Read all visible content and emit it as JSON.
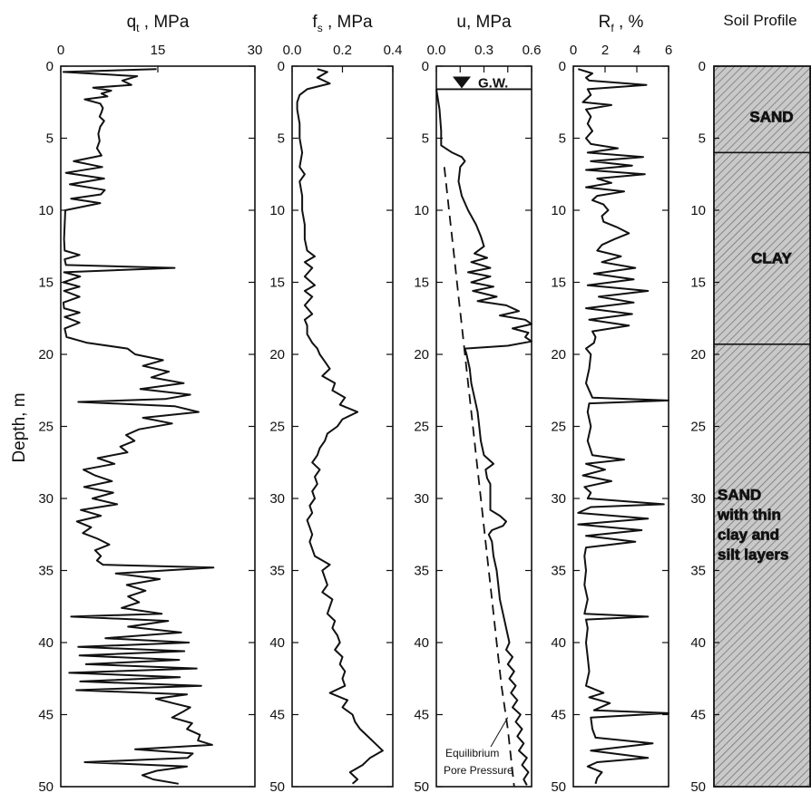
{
  "figure": {
    "y_axis_label": "Depth, m"
  },
  "chart_data": [
    {
      "type": "line",
      "title": "q_t , MPa",
      "title_main": "q",
      "title_sub": "t",
      "title_rest": " , MPa",
      "xlabel": "q_t , MPa",
      "ylabel": "Depth, m",
      "xlim": [
        0,
        30
      ],
      "ylim": [
        50,
        0
      ],
      "x_ticks": [
        0,
        15,
        30
      ],
      "y_ticks": [
        0,
        5,
        10,
        15,
        20,
        25,
        30,
        35,
        40,
        45,
        50
      ],
      "series": [
        {
          "y": [
            0.2,
            0.4,
            0.7,
            1.0,
            1.3,
            1.5,
            1.7,
            1.9,
            2.1,
            2.3,
            2.6,
            2.9,
            3.2,
            3.5,
            3.8,
            4.2,
            4.7,
            5.2,
            5.7,
            6.2,
            6.6,
            7.0,
            7.4,
            7.8,
            8.2,
            8.6,
            8.9,
            9.2,
            9.5,
            10.0,
            11.0,
            12.0,
            12.8,
            13.1,
            13.4,
            13.8,
            14.0,
            14.3,
            14.6,
            15.0,
            15.3,
            15.6,
            16.0,
            16.4,
            16.8,
            17.1,
            17.4,
            17.8,
            18.2,
            18.8,
            19.2,
            19.6,
            20.0,
            20.4,
            20.8,
            21.2,
            21.6,
            22.0,
            22.4,
            22.8,
            23.1,
            23.3,
            23.6,
            24.0,
            24.4,
            24.8,
            25.2,
            25.6,
            26.0,
            26.4,
            26.8,
            27.2,
            27.6,
            28.0,
            28.4,
            28.8,
            29.2,
            29.6,
            30.0,
            30.4,
            30.8,
            31.2,
            31.6,
            32.0,
            32.4,
            32.8,
            33.2,
            33.6,
            34.0,
            34.3,
            34.6,
            34.8,
            35.2,
            35.6,
            36.0,
            36.4,
            36.8,
            37.2,
            37.6,
            38.0,
            38.2,
            38.5,
            38.9,
            39.3,
            39.7,
            40.0,
            40.3,
            40.6,
            40.9,
            41.2,
            41.5,
            41.8,
            42.1,
            42.4,
            42.7,
            43.0,
            43.3,
            43.6,
            43.9,
            44.2,
            44.5,
            44.8,
            45.2,
            45.6,
            46.0,
            46.4,
            46.8,
            47.1,
            47.4,
            47.7,
            48.0,
            48.3,
            48.6,
            48.9,
            49.2,
            49.5,
            49.8
          ],
          "x": [
            14.8,
            0.4,
            11.8,
            9.5,
            10.9,
            5.0,
            7.8,
            6.3,
            7.2,
            3.7,
            6.1,
            6.5,
            6.3,
            6.0,
            6.7,
            6.1,
            5.8,
            6.0,
            5.6,
            6.3,
            2.0,
            6.4,
            0.8,
            6.7,
            1.4,
            6.8,
            6.2,
            1.6,
            6.1,
            0.7,
            0.6,
            0.5,
            0.6,
            2.9,
            0.6,
            0.8,
            17.6,
            0.5,
            3.0,
            0.4,
            2.9,
            0.5,
            2.9,
            0.4,
            0.5,
            2.9,
            0.6,
            2.9,
            0.6,
            0.9,
            4.1,
            10.3,
            11.5,
            15.8,
            12.7,
            16.7,
            14.0,
            19.0,
            12.3,
            20.0,
            16.1,
            2.7,
            17.6,
            21.3,
            12.7,
            17.2,
            12.1,
            10.1,
            11.4,
            9.2,
            10.3,
            5.7,
            8.3,
            3.5,
            5.3,
            7.9,
            3.6,
            8.1,
            4.9,
            8.7,
            3.1,
            6.2,
            2.5,
            4.7,
            3.4,
            5.7,
            7.5,
            5.3,
            6.2,
            5.6,
            6.5,
            23.6,
            8.5,
            15.3,
            10.2,
            13.1,
            10.4,
            12.1,
            9.4,
            15.6,
            1.6,
            16.6,
            10.4,
            18.6,
            6.9,
            19.8,
            2.7,
            19.1,
            2.9,
            18.3,
            3.9,
            21.0,
            1.3,
            18.4,
            3.0,
            21.7,
            2.4,
            19.5,
            14.7,
            17.3,
            20.0,
            18.9,
            17.2,
            20.3,
            19.5,
            21.5,
            21.2,
            23.4,
            11.5,
            20.4,
            19.6,
            3.7,
            19.5,
            14.8,
            12.6,
            14.3,
            18.2
          ]
        }
      ]
    },
    {
      "type": "line",
      "title": "f_s , MPa",
      "title_main": "f",
      "title_sub": "s",
      "title_rest": " , MPa",
      "xlabel": "f_s , MPa",
      "xlim": [
        0,
        0.4
      ],
      "ylim": [
        50,
        0
      ],
      "x_ticks": [
        0,
        0.2,
        0.4
      ],
      "x_tick_labels": [
        "0.0",
        "0.2",
        "0.4"
      ],
      "y_ticks": [
        0,
        5,
        10,
        15,
        20,
        25,
        30,
        35,
        40,
        45,
        50
      ],
      "series": [
        {
          "y": [
            0.2,
            0.4,
            0.8,
            1.2,
            1.6,
            2.0,
            2.5,
            3.0,
            4.0,
            5.0,
            6.0,
            7.0,
            7.5,
            8.0,
            9.0,
            10.0,
            11.0,
            12.0,
            12.8,
            13.2,
            13.6,
            14.0,
            14.6,
            15.2,
            15.6,
            16.0,
            16.6,
            17.2,
            17.6,
            18.0,
            18.6,
            19.2,
            19.6,
            20.0,
            20.5,
            21.0,
            21.5,
            22.0,
            22.5,
            23.0,
            23.5,
            24.0,
            24.5,
            25.0,
            25.5,
            26.0,
            26.5,
            27.0,
            27.5,
            28.0,
            28.5,
            29.0,
            29.5,
            30.0,
            30.5,
            31.0,
            31.5,
            32.0,
            32.5,
            33.0,
            33.5,
            34.0,
            34.6,
            35.0,
            35.5,
            36.0,
            36.5,
            37.0,
            37.5,
            38.0,
            38.5,
            39.0,
            39.5,
            40.0,
            40.5,
            41.0,
            41.5,
            42.0,
            42.5,
            43.0,
            43.5,
            44.0,
            44.5,
            45.0,
            45.5,
            46.0,
            46.5,
            47.0,
            47.5,
            48.0,
            48.5,
            49.0,
            49.5,
            49.8
          ],
          "x": [
            0.1,
            0.14,
            0.1,
            0.15,
            0.06,
            0.03,
            0.02,
            0.02,
            0.03,
            0.03,
            0.04,
            0.03,
            0.05,
            0.03,
            0.04,
            0.04,
            0.05,
            0.05,
            0.06,
            0.09,
            0.05,
            0.08,
            0.05,
            0.09,
            0.05,
            0.08,
            0.05,
            0.08,
            0.05,
            0.06,
            0.06,
            0.08,
            0.1,
            0.11,
            0.13,
            0.15,
            0.12,
            0.17,
            0.16,
            0.21,
            0.19,
            0.26,
            0.2,
            0.18,
            0.14,
            0.13,
            0.11,
            0.1,
            0.08,
            0.11,
            0.09,
            0.1,
            0.08,
            0.09,
            0.07,
            0.08,
            0.06,
            0.07,
            0.08,
            0.07,
            0.08,
            0.09,
            0.15,
            0.12,
            0.13,
            0.14,
            0.12,
            0.16,
            0.15,
            0.14,
            0.17,
            0.16,
            0.18,
            0.19,
            0.17,
            0.2,
            0.19,
            0.21,
            0.2,
            0.21,
            0.15,
            0.22,
            0.2,
            0.24,
            0.25,
            0.27,
            0.3,
            0.33,
            0.36,
            0.31,
            0.28,
            0.23,
            0.26,
            0.24
          ]
        }
      ]
    },
    {
      "type": "line",
      "title": "u, MPa",
      "xlabel": "u, MPa",
      "xlim": [
        0,
        0.6
      ],
      "ylim": [
        50,
        0
      ],
      "x_ticks": [
        0,
        0.15,
        0.3,
        0.45,
        0.6
      ],
      "x_tick_labels": [
        "0.0",
        "",
        "0.3",
        "",
        "0.6"
      ],
      "y_ticks": [
        0,
        5,
        10,
        15,
        20,
        25,
        30,
        35,
        40,
        45,
        50
      ],
      "annotations": {
        "groundwater": "G.W.",
        "groundwater_depth": 1.6,
        "equilibrium_line1": "Equilibrium",
        "equilibrium_line2": "Pore Pressure"
      },
      "series": [
        {
          "name": "measured",
          "y": [
            1.6,
            3.0,
            4.5,
            5.5,
            6.0,
            6.3,
            6.6,
            7.0,
            8.0,
            9.0,
            10.0,
            11.0,
            11.8,
            12.5,
            13.0,
            13.3,
            13.6,
            14.0,
            14.3,
            14.6,
            15.0,
            15.3,
            15.6,
            16.0,
            16.3,
            16.6,
            17.0,
            17.3,
            17.6,
            17.9,
            18.2,
            18.5,
            18.8,
            19.1,
            19.4,
            19.6,
            20.0,
            21.0,
            22.0,
            23.0,
            24.0,
            25.0,
            26.0,
            27.0,
            27.6,
            28.0,
            28.6,
            29.0,
            30.0,
            30.8,
            31.2,
            31.6,
            31.9,
            32.2,
            32.5,
            33.0,
            34.0,
            35.0,
            36.0,
            37.0,
            38.0,
            39.0,
            40.0,
            40.5,
            41.0,
            41.5,
            42.0,
            42.5,
            43.0,
            43.5,
            44.0,
            44.5,
            45.0,
            45.5,
            46.0,
            46.5,
            47.0,
            47.5,
            48.0,
            48.5,
            49.0,
            49.5,
            49.9
          ],
          "x": [
            0.0,
            0.02,
            0.03,
            0.03,
            0.1,
            0.16,
            0.18,
            0.15,
            0.14,
            0.16,
            0.2,
            0.25,
            0.28,
            0.3,
            0.24,
            0.32,
            0.22,
            0.34,
            0.2,
            0.34,
            0.22,
            0.36,
            0.23,
            0.38,
            0.26,
            0.44,
            0.52,
            0.4,
            0.56,
            0.6,
            0.48,
            0.58,
            0.56,
            0.6,
            0.45,
            0.18,
            0.19,
            0.21,
            0.22,
            0.24,
            0.26,
            0.27,
            0.28,
            0.3,
            0.36,
            0.31,
            0.32,
            0.34,
            0.34,
            0.34,
            0.4,
            0.44,
            0.42,
            0.35,
            0.33,
            0.35,
            0.36,
            0.38,
            0.39,
            0.4,
            0.42,
            0.44,
            0.46,
            0.44,
            0.48,
            0.45,
            0.49,
            0.46,
            0.5,
            0.47,
            0.51,
            0.48,
            0.53,
            0.5,
            0.54,
            0.51,
            0.55,
            0.52,
            0.57,
            0.54,
            0.58,
            0.55,
            0.57
          ]
        },
        {
          "name": "equilibrium",
          "style": "dashed",
          "y": [
            7.0,
            10.0,
            13.0,
            16.0,
            19.0,
            22.0,
            25.0,
            28.0,
            31.0,
            34.0,
            37.0,
            40.0,
            43.0,
            46.0,
            49.0,
            50.0
          ],
          "x": [
            0.05,
            0.08,
            0.11,
            0.14,
            0.17,
            0.2,
            0.23,
            0.26,
            0.29,
            0.32,
            0.35,
            0.38,
            0.41,
            0.45,
            0.48,
            0.49
          ]
        }
      ]
    },
    {
      "type": "line",
      "title": "R_f , %",
      "title_main": "R",
      "title_sub": "f",
      "title_rest": " , %",
      "xlabel": "R_f , %",
      "xlim": [
        0,
        6
      ],
      "ylim": [
        50,
        0
      ],
      "x_ticks": [
        0,
        2,
        4,
        6
      ],
      "y_ticks": [
        0,
        5,
        10,
        15,
        20,
        25,
        30,
        35,
        40,
        45,
        50
      ],
      "series": [
        {
          "y": [
            0.2,
            0.5,
            0.8,
            1.0,
            1.3,
            1.6,
            2.0,
            2.5,
            2.7,
            3.0,
            3.5,
            4.0,
            4.5,
            5.0,
            5.4,
            5.7,
            6.0,
            6.3,
            6.6,
            6.9,
            7.2,
            7.5,
            7.8,
            8.1,
            8.4,
            8.7,
            9.0,
            9.3,
            9.6,
            10.0,
            10.4,
            10.8,
            11.2,
            11.6,
            12.0,
            12.4,
            12.8,
            13.2,
            13.6,
            14.0,
            14.4,
            14.8,
            15.2,
            15.6,
            16.0,
            16.4,
            16.8,
            17.2,
            17.6,
            18.0,
            18.4,
            18.8,
            19.2,
            19.6,
            20.0,
            21.0,
            22.0,
            23.0,
            23.2,
            23.4,
            24.0,
            25.0,
            26.0,
            27.0,
            27.3,
            27.6,
            28.0,
            28.4,
            28.8,
            29.2,
            29.6,
            30.0,
            30.4,
            30.6,
            31.0,
            31.4,
            31.8,
            32.2,
            32.6,
            33.0,
            33.4,
            34.0,
            35.0,
            36.0,
            37.0,
            38.0,
            38.2,
            38.4,
            39.0,
            40.0,
            41.0,
            42.0,
            43.0,
            43.5,
            43.8,
            44.2,
            44.7,
            44.9,
            45.2,
            46.0,
            46.6,
            47.0,
            47.5,
            48.0,
            48.3,
            48.6,
            49.0,
            49.4,
            49.8
          ],
          "x": [
            0.3,
            1.2,
            0.8,
            1.0,
            4.6,
            0.9,
            1.1,
            0.6,
            2.4,
            0.8,
            1.1,
            0.9,
            1.2,
            0.8,
            1.1,
            2.8,
            0.9,
            4.4,
            1.1,
            3.7,
            0.8,
            4.5,
            1.5,
            2.4,
            0.8,
            3.2,
            1.5,
            1.2,
            1.9,
            2.2,
            1.8,
            1.9,
            2.8,
            3.5,
            2.6,
            1.8,
            1.5,
            3.0,
            1.8,
            3.9,
            1.3,
            3.8,
            0.9,
            4.7,
            1.6,
            3.8,
            0.8,
            3.7,
            1.0,
            3.5,
            1.2,
            1.4,
            1.3,
            0.8,
            1.1,
            1.0,
            0.8,
            1.2,
            6.0,
            1.0,
            0.9,
            1.1,
            0.9,
            1.2,
            3.2,
            0.8,
            2.0,
            0.6,
            2.4,
            0.7,
            1.1,
            0.9,
            5.7,
            1.1,
            0.3,
            4.7,
            0.3,
            4.3,
            0.8,
            3.9,
            0.8,
            0.7,
            0.8,
            0.7,
            0.9,
            0.7,
            4.7,
            0.8,
            0.9,
            0.8,
            0.9,
            1.0,
            0.8,
            1.9,
            1.0,
            2.3,
            1.3,
            6.0,
            1.1,
            1.2,
            1.4,
            5.0,
            1.1,
            4.7,
            1.5,
            0.9,
            1.8,
            1.5,
            1.4
          ]
        }
      ]
    },
    {
      "type": "table",
      "title": "Soil Profile",
      "ylim": [
        50,
        0
      ],
      "y_ticks": [
        0,
        5,
        10,
        15,
        20,
        25,
        30,
        35,
        40,
        45,
        50
      ],
      "layers": [
        {
          "top": 0,
          "bottom": 6.0,
          "label": [
            "SAND"
          ],
          "label_depth": 3.5
        },
        {
          "top": 6.0,
          "bottom": 19.3,
          "label": [
            "CLAY"
          ],
          "label_depth": 13.3
        },
        {
          "top": 19.3,
          "bottom": 50,
          "label": [
            "SAND",
            "with thin",
            "clay and",
            "silt layers"
          ],
          "label_depth": 31.8
        }
      ]
    }
  ]
}
